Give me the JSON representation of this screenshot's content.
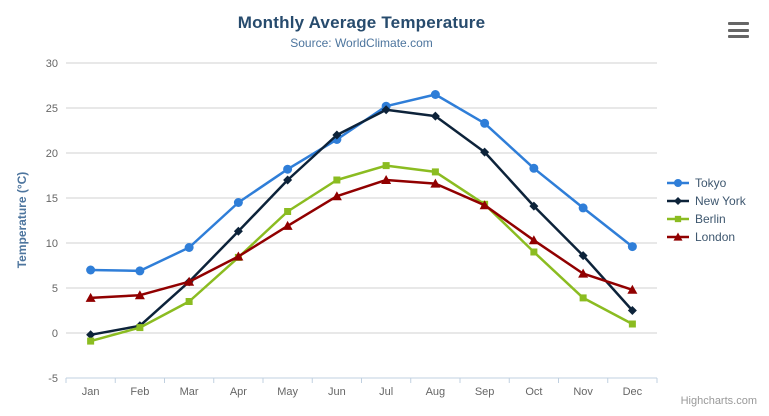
{
  "header": {
    "title": "Monthly Average Temperature",
    "subtitle": "Source: WorldClimate.com"
  },
  "menu": {
    "icon": "hamburger-icon"
  },
  "credits": {
    "label": "Highcharts.com"
  },
  "axes": {
    "y_title": "Temperature (°C)",
    "y_ticks": [
      30,
      25,
      20,
      15,
      10,
      5,
      0,
      -5
    ],
    "y_min": -5,
    "y_max": 30,
    "y_tick_interval": 5,
    "grid_color": "#d0d0d0",
    "axis_line_color": "#c0d0e0",
    "label_color": "#666666",
    "legend_text_color": "#3e576f"
  },
  "chart_data": {
    "type": "line",
    "title": "Monthly Average Temperature",
    "subtitle": "Source: WorldClimate.com",
    "xlabel": "",
    "ylabel": "Temperature (°C)",
    "ylim": [
      -5,
      30
    ],
    "grid": true,
    "legend_position": "right",
    "categories": [
      "Jan",
      "Feb",
      "Mar",
      "Apr",
      "May",
      "Jun",
      "Jul",
      "Aug",
      "Sep",
      "Oct",
      "Nov",
      "Dec"
    ],
    "series": [
      {
        "name": "Tokyo",
        "color": "#2f7ed8",
        "marker": "circle",
        "values": [
          7.0,
          6.9,
          9.5,
          14.5,
          18.2,
          21.5,
          25.2,
          26.5,
          23.3,
          18.3,
          13.9,
          9.6
        ]
      },
      {
        "name": "New York",
        "color": "#0d233a",
        "marker": "diamond",
        "values": [
          -0.2,
          0.8,
          5.7,
          11.3,
          17.0,
          22.0,
          24.8,
          24.1,
          20.1,
          14.1,
          8.6,
          2.5
        ]
      },
      {
        "name": "Berlin",
        "color": "#8bbc21",
        "marker": "square",
        "values": [
          -0.9,
          0.6,
          3.5,
          8.4,
          13.5,
          17.0,
          18.6,
          17.9,
          14.3,
          9.0,
          3.9,
          1.0
        ]
      },
      {
        "name": "London",
        "color": "#910000",
        "marker": "triangle",
        "values": [
          3.9,
          4.2,
          5.7,
          8.5,
          11.9,
          15.2,
          17.0,
          16.6,
          14.2,
          10.3,
          6.6,
          4.8
        ]
      }
    ]
  }
}
